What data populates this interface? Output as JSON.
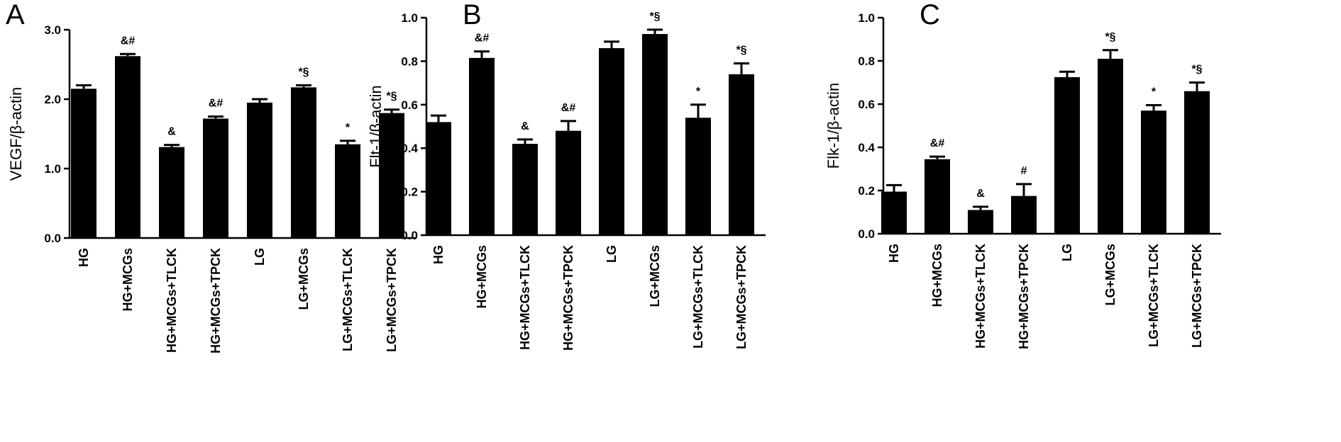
{
  "chart_data": [
    {
      "type": "bar",
      "panel": "A",
      "ylabel": "VEGF/β-actin",
      "ylim": [
        0,
        3.0
      ],
      "yticks": [
        "0.0",
        "1.0",
        "2.0",
        "3.0"
      ],
      "categories": [
        "HG",
        "HG+MCGs",
        "HG+MCGs+TLCK",
        "HG+MCGs+TPCK",
        "LG",
        "LG+MCGs",
        "LG+MCGs+TLCK",
        "LG+MCGs+TPCK"
      ],
      "values": [
        2.15,
        2.62,
        1.31,
        1.72,
        1.95,
        2.17,
        1.35,
        1.8
      ],
      "errors": [
        0.05,
        0.03,
        0.03,
        0.03,
        0.05,
        0.03,
        0.05,
        0.05
      ],
      "annotations": [
        "",
        "&#",
        "&",
        "&#",
        "",
        "*§",
        "*",
        "*§"
      ]
    },
    {
      "type": "bar",
      "panel": "B",
      "ylabel": "Flt-1/β-actin",
      "ylim": [
        0,
        1.0
      ],
      "yticks": [
        "0.0",
        "0.2",
        "0.4",
        "0.6",
        "0.8",
        "1.0"
      ],
      "categories": [
        "HG",
        "HG+MCGs",
        "HG+MCGs+TLCK",
        "HG+MCGs+TPCK",
        "LG",
        "LG+MCGs",
        "LG+MCGs+TLCK",
        "LG+MCGs+TPCK"
      ],
      "values": [
        0.52,
        0.815,
        0.42,
        0.48,
        0.86,
        0.925,
        0.54,
        0.74
      ],
      "errors": [
        0.03,
        0.03,
        0.02,
        0.045,
        0.03,
        0.02,
        0.06,
        0.05
      ],
      "annotations": [
        "",
        "&#",
        "&",
        "&#",
        "",
        "*§",
        "*",
        "*§"
      ]
    },
    {
      "type": "bar",
      "panel": "C",
      "ylabel": "Flk-1/β-actin",
      "ylim": [
        0,
        1.0
      ],
      "yticks": [
        "0.0",
        "0.2",
        "0.4",
        "0.6",
        "0.8",
        "1.0"
      ],
      "categories": [
        "HG",
        "HG+MCGs",
        "HG+MCGs+TLCK",
        "HG+MCGs+TPCK",
        "LG",
        "LG+MCGs",
        "LG+MCGs+TLCK",
        "LG+MCGs+TPCK"
      ],
      "values": [
        0.195,
        0.345,
        0.11,
        0.175,
        0.725,
        0.81,
        0.57,
        0.66
      ],
      "errors": [
        0.03,
        0.012,
        0.015,
        0.055,
        0.025,
        0.04,
        0.025,
        0.04
      ],
      "annotations": [
        "",
        "&#",
        "&",
        "#",
        "",
        "*§",
        "*",
        "*§"
      ]
    }
  ]
}
